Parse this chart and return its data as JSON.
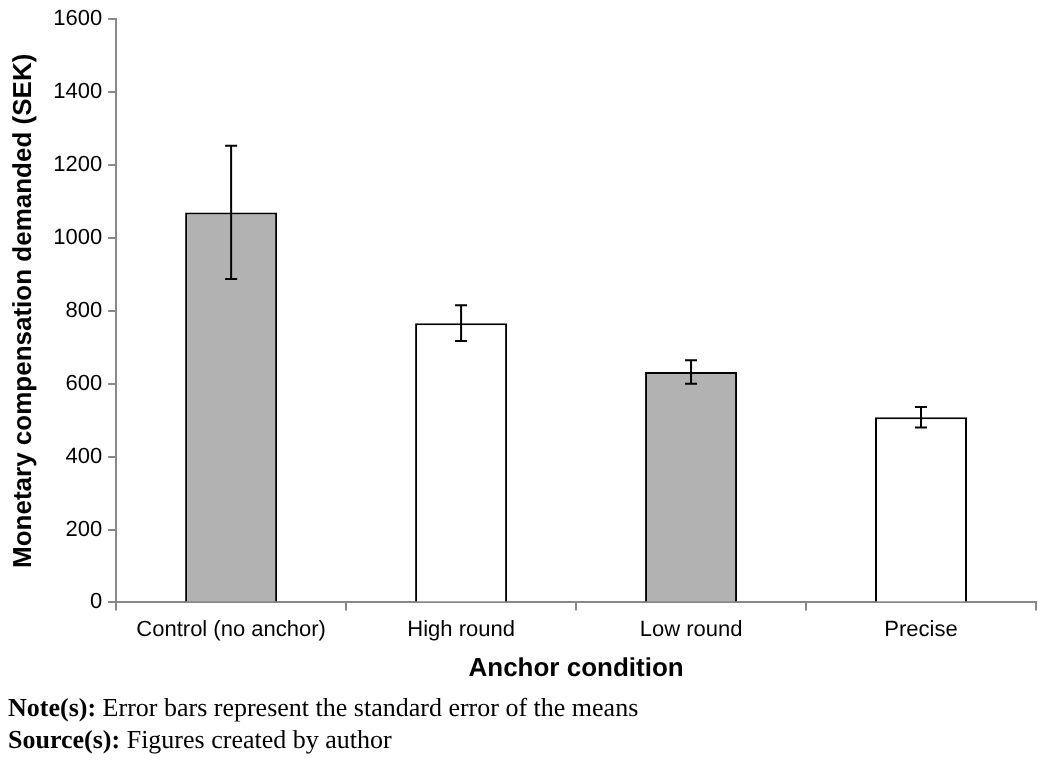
{
  "chart_data": {
    "type": "bar",
    "xlabel": "Anchor condition",
    "ylabel": "Monetary compensation demanded (SEK)",
    "categories": [
      "Control (no anchor)",
      "High round",
      "Low round",
      "Precise"
    ],
    "values": [
      1070,
      766,
      632,
      508
    ],
    "colors": [
      "#b2b2b2",
      "#ffffff",
      "#b2b2b2",
      "#ffffff"
    ],
    "errors": [
      183,
      49,
      32,
      28
    ],
    "ylim": [
      0,
      1600
    ],
    "yticks": [
      0,
      200,
      400,
      600,
      800,
      1000,
      1200,
      1400,
      1600
    ],
    "grid": false,
    "legend": false,
    "annotations": [
      "Note(s): Error bars represent the standard error of the means",
      "Source(s): Figures created by author"
    ]
  }
}
